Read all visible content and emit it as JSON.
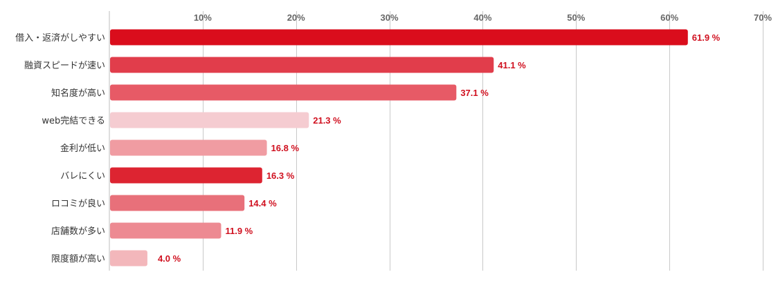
{
  "chart_data": {
    "type": "bar",
    "orientation": "horizontal",
    "title": "",
    "xlabel": "",
    "ylabel": "",
    "xlim": [
      0,
      70
    ],
    "tick_values": [
      10,
      20,
      30,
      40,
      50,
      60,
      70
    ],
    "tick_labels": [
      "10%",
      "20%",
      "30%",
      "40%",
      "50%",
      "60%",
      "70%"
    ],
    "grid": true,
    "legend": "none",
    "categories": [
      "借入・返済がしやすい",
      "融資スピードが速い",
      "知名度が高い",
      "web完結できる",
      "金利が低い",
      "バレにくい",
      "ロコミが良い",
      "店舗数が多い",
      "限度額が高い"
    ],
    "values": [
      61.9,
      41.1,
      37.1,
      21.3,
      16.8,
      16.3,
      14.4,
      11.9,
      4.0
    ],
    "value_labels": [
      "61.9 %",
      "41.1 %",
      "37.1 %",
      "21.3 %",
      "16.8 %",
      "16.3 %",
      "14.4 %",
      "11.9 %",
      "4.0 %"
    ],
    "colors": [
      "#da0d1c",
      "#e13d4b",
      "#e75a66",
      "#f5ccd1",
      "#f09ca2",
      "#dd2431",
      "#e8707a",
      "#ed8a92",
      "#f3b7bb"
    ],
    "label_color": "#d0101f"
  }
}
